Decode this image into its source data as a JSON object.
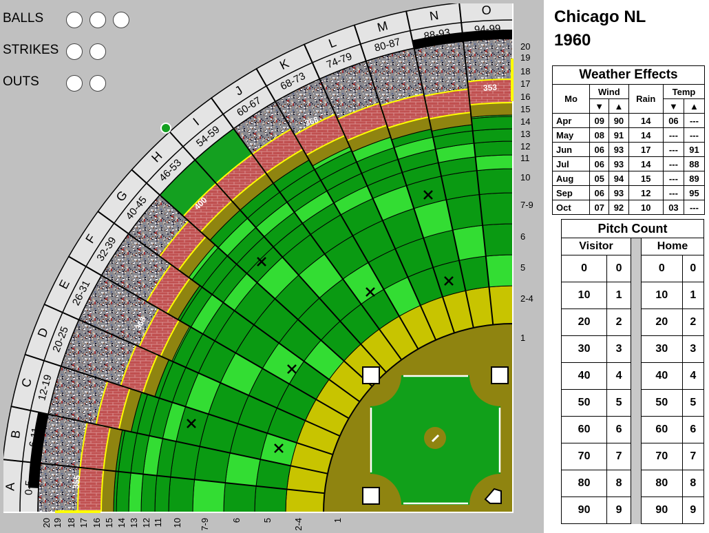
{
  "header": {
    "team": "Chicago NL",
    "year": "1960"
  },
  "counters": [
    {
      "label": "BALLS",
      "count": 3
    },
    {
      "label": "STRIKES",
      "count": 2
    },
    {
      "label": "OUTS",
      "count": 2
    }
  ],
  "field": {
    "sectors": [
      {
        "letter": "A",
        "range": "0-5"
      },
      {
        "letter": "B",
        "range": "6-11"
      },
      {
        "letter": "C",
        "range": "12-19"
      },
      {
        "letter": "D",
        "range": "20-25"
      },
      {
        "letter": "E",
        "range": "26-31"
      },
      {
        "letter": "F",
        "range": "32-39"
      },
      {
        "letter": "G",
        "range": "40-45"
      },
      {
        "letter": "H",
        "range": "46-53"
      },
      {
        "letter": "I",
        "range": "54-59"
      },
      {
        "letter": "J",
        "range": "60-67"
      },
      {
        "letter": "K",
        "range": "68-73"
      },
      {
        "letter": "L",
        "range": "74-79"
      },
      {
        "letter": "M",
        "range": "80-87"
      },
      {
        "letter": "N",
        "range": "88-93"
      },
      {
        "letter": "O",
        "range": "94-99"
      }
    ],
    "rows": [
      "1",
      "2-4",
      "5",
      "6",
      "7-9",
      "10",
      "11",
      "12",
      "13",
      "14",
      "15",
      "16",
      "17",
      "18",
      "19",
      "20"
    ],
    "wall_distances": [
      "355",
      "368",
      "400",
      "368",
      "353"
    ],
    "colors": {
      "dirt": "#8f8410",
      "yellow": "#c8c400",
      "grass": "#0a9a12",
      "light_grass": "#33dd33",
      "brick": "#c05050",
      "wall_outline": "#ffff00",
      "background": "#c0c0c0"
    }
  },
  "weather": {
    "title": "Weather Effects",
    "headers": {
      "month": "Mo",
      "wind": "Wind",
      "rain": "Rain",
      "temp": "Temp",
      "down": "▼",
      "up": "▲"
    },
    "rows": [
      [
        "Apr",
        "09",
        "90",
        "14",
        "06",
        "---"
      ],
      [
        "May",
        "08",
        "91",
        "14",
        "---",
        "---"
      ],
      [
        "Jun",
        "06",
        "93",
        "17",
        "---",
        "91"
      ],
      [
        "Jul",
        "06",
        "93",
        "14",
        "---",
        "88"
      ],
      [
        "Aug",
        "05",
        "94",
        "15",
        "---",
        "89"
      ],
      [
        "Sep",
        "06",
        "93",
        "12",
        "---",
        "95"
      ],
      [
        "Oct",
        "07",
        "92",
        "10",
        "03",
        "---"
      ]
    ]
  },
  "pitch_count": {
    "title": "Pitch Count",
    "visitor": "Visitor",
    "home": "Home",
    "rows": [
      [
        "0",
        "0"
      ],
      [
        "10",
        "1"
      ],
      [
        "20",
        "2"
      ],
      [
        "30",
        "3"
      ],
      [
        "40",
        "4"
      ],
      [
        "50",
        "5"
      ],
      [
        "60",
        "6"
      ],
      [
        "70",
        "7"
      ],
      [
        "80",
        "8"
      ],
      [
        "90",
        "9"
      ]
    ]
  }
}
